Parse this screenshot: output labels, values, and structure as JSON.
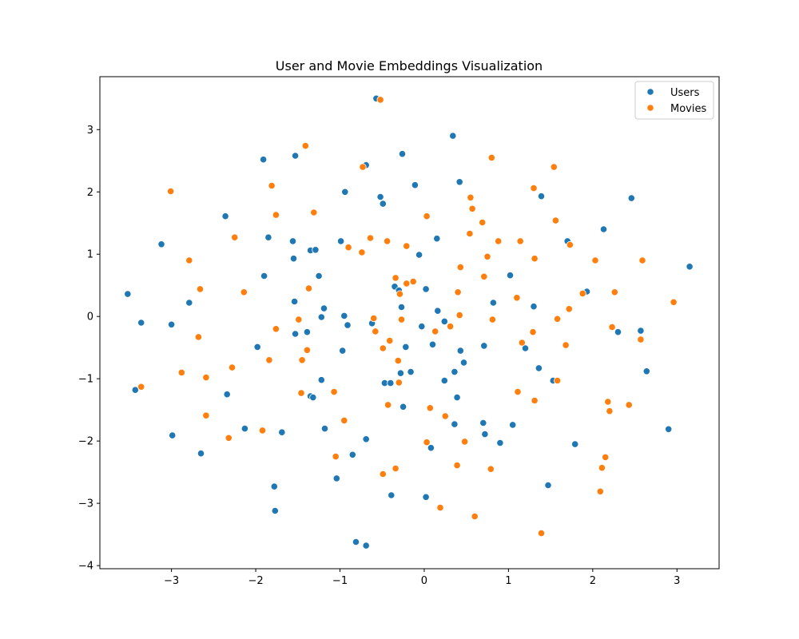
{
  "chart_data": {
    "type": "scatter",
    "title": "User and Movie Embeddings Visualization",
    "xlabel": "",
    "ylabel": "",
    "xlim": [
      -3.85,
      3.5
    ],
    "ylim": [
      -4.05,
      3.85
    ],
    "xticks": [
      -3,
      -2,
      -1,
      0,
      1,
      2,
      3
    ],
    "yticks": [
      -4,
      -3,
      -2,
      -1,
      0,
      1,
      2,
      3
    ],
    "xtick_labels": [
      "−3",
      "−2",
      "−1",
      "0",
      "1",
      "2",
      "3"
    ],
    "ytick_labels": [
      "−4",
      "−3",
      "−2",
      "−1",
      "0",
      "1",
      "2",
      "3"
    ],
    "grid": false,
    "legend_position": "top-right",
    "series": [
      {
        "name": "Users",
        "color": "#1f77b4",
        "points": [
          [
            -3.52,
            0.36
          ],
          [
            -3.43,
            -1.18
          ],
          [
            -3.36,
            -0.1
          ],
          [
            -3.12,
            1.16
          ],
          [
            -3.0,
            -0.13
          ],
          [
            -2.99,
            -1.91
          ],
          [
            -2.79,
            0.22
          ],
          [
            -2.65,
            -2.2
          ],
          [
            -2.36,
            1.61
          ],
          [
            -2.34,
            -1.25
          ],
          [
            -2.13,
            -1.8
          ],
          [
            -1.98,
            -0.49
          ],
          [
            -1.91,
            2.52
          ],
          [
            -1.9,
            0.65
          ],
          [
            -1.85,
            1.27
          ],
          [
            -1.78,
            -2.73
          ],
          [
            -1.77,
            -3.12
          ],
          [
            -1.69,
            -1.86
          ],
          [
            -1.56,
            1.21
          ],
          [
            -1.55,
            0.93
          ],
          [
            -1.54,
            0.24
          ],
          [
            -1.53,
            -0.28
          ],
          [
            -1.53,
            2.58
          ],
          [
            -1.39,
            -0.25
          ],
          [
            -1.35,
            1.06
          ],
          [
            -1.35,
            -1.28
          ],
          [
            -1.32,
            -1.3
          ],
          [
            -1.29,
            1.07
          ],
          [
            -1.25,
            0.65
          ],
          [
            -1.22,
            -1.02
          ],
          [
            -1.22,
            -0.01
          ],
          [
            -1.19,
            0.13
          ],
          [
            -1.18,
            -1.8
          ],
          [
            -1.04,
            -2.6
          ],
          [
            -0.99,
            1.21
          ],
          [
            -0.97,
            -0.55
          ],
          [
            -0.95,
            0.01
          ],
          [
            -0.94,
            2.0
          ],
          [
            -0.91,
            -0.14
          ],
          [
            -0.85,
            -2.22
          ],
          [
            -0.81,
            -3.62
          ],
          [
            -0.69,
            -1.97
          ],
          [
            -0.69,
            2.43
          ],
          [
            -0.69,
            -3.68
          ],
          [
            -0.62,
            -0.11
          ],
          [
            -0.57,
            3.5
          ],
          [
            -0.52,
            1.92
          ],
          [
            -0.49,
            1.81
          ],
          [
            -0.47,
            -1.07
          ],
          [
            -0.4,
            -1.07
          ],
          [
            -0.39,
            -2.87
          ],
          [
            -0.35,
            0.48
          ],
          [
            -0.3,
            0.42
          ],
          [
            -0.28,
            -0.91
          ],
          [
            -0.27,
            0.15
          ],
          [
            -0.26,
            2.61
          ],
          [
            -0.25,
            -1.45
          ],
          [
            -0.22,
            -0.49
          ],
          [
            -0.16,
            -0.89
          ],
          [
            -0.11,
            2.11
          ],
          [
            -0.06,
            0.99
          ],
          [
            -0.03,
            -0.16
          ],
          [
            0.02,
            0.44
          ],
          [
            0.02,
            -2.9
          ],
          [
            0.08,
            -2.11
          ],
          [
            0.1,
            -0.45
          ],
          [
            0.15,
            1.25
          ],
          [
            0.16,
            0.09
          ],
          [
            0.24,
            -0.08
          ],
          [
            0.24,
            -1.03
          ],
          [
            0.34,
            2.9
          ],
          [
            0.36,
            -0.89
          ],
          [
            0.36,
            -1.73
          ],
          [
            0.39,
            -1.3
          ],
          [
            0.42,
            2.16
          ],
          [
            0.43,
            -0.55
          ],
          [
            0.47,
            -0.74
          ],
          [
            0.7,
            -1.71
          ],
          [
            0.71,
            -0.47
          ],
          [
            0.72,
            -1.89
          ],
          [
            0.82,
            0.22
          ],
          [
            0.9,
            -2.03
          ],
          [
            1.02,
            0.66
          ],
          [
            1.05,
            -1.74
          ],
          [
            1.2,
            -0.51
          ],
          [
            1.3,
            0.16
          ],
          [
            1.36,
            -0.83
          ],
          [
            1.39,
            1.93
          ],
          [
            1.47,
            -2.71
          ],
          [
            1.53,
            -1.03
          ],
          [
            1.7,
            1.21
          ],
          [
            1.79,
            -2.05
          ],
          [
            1.93,
            0.4
          ],
          [
            2.13,
            1.4
          ],
          [
            2.3,
            -0.25
          ],
          [
            2.46,
            1.9
          ],
          [
            2.57,
            -0.23
          ],
          [
            2.64,
            -0.88
          ],
          [
            2.9,
            -1.81
          ],
          [
            3.15,
            0.8
          ]
        ]
      },
      {
        "name": "Movies",
        "color": "#ff7f0e",
        "points": [
          [
            -3.36,
            -1.13
          ],
          [
            -3.01,
            2.01
          ],
          [
            -2.88,
            -0.9
          ],
          [
            -2.79,
            0.9
          ],
          [
            -2.68,
            -0.33
          ],
          [
            -2.66,
            0.44
          ],
          [
            -2.59,
            -0.98
          ],
          [
            -2.59,
            -1.59
          ],
          [
            -2.32,
            -1.95
          ],
          [
            -2.28,
            -0.82
          ],
          [
            -2.25,
            1.27
          ],
          [
            -2.14,
            0.39
          ],
          [
            -1.92,
            -1.83
          ],
          [
            -1.84,
            -0.7
          ],
          [
            -1.81,
            2.1
          ],
          [
            -1.76,
            1.63
          ],
          [
            -1.76,
            -0.2
          ],
          [
            -1.49,
            -0.05
          ],
          [
            -1.46,
            -1.23
          ],
          [
            -1.45,
            -0.7
          ],
          [
            -1.41,
            2.74
          ],
          [
            -1.39,
            -0.54
          ],
          [
            -1.37,
            0.45
          ],
          [
            -1.31,
            1.67
          ],
          [
            -1.07,
            -1.21
          ],
          [
            -1.05,
            -2.25
          ],
          [
            -0.95,
            -1.67
          ],
          [
            -0.9,
            1.11
          ],
          [
            -0.74,
            1.03
          ],
          [
            -0.73,
            2.4
          ],
          [
            -0.64,
            1.26
          ],
          [
            -0.6,
            -0.03
          ],
          [
            -0.58,
            -0.24
          ],
          [
            -0.52,
            3.48
          ],
          [
            -0.49,
            -0.51
          ],
          [
            -0.49,
            -2.53
          ],
          [
            -0.44,
            1.21
          ],
          [
            -0.43,
            -1.42
          ],
          [
            -0.41,
            -0.39
          ],
          [
            -0.34,
            -2.44
          ],
          [
            -0.34,
            0.62
          ],
          [
            -0.31,
            -0.71
          ],
          [
            -0.3,
            -1.06
          ],
          [
            -0.29,
            0.36
          ],
          [
            -0.27,
            -0.05
          ],
          [
            -0.21,
            0.53
          ],
          [
            -0.21,
            1.13
          ],
          [
            -0.13,
            0.56
          ],
          [
            0.03,
            1.61
          ],
          [
            0.03,
            -2.02
          ],
          [
            0.07,
            -1.47
          ],
          [
            0.13,
            -0.24
          ],
          [
            0.19,
            -3.07
          ],
          [
            0.25,
            -1.6
          ],
          [
            0.31,
            -0.16
          ],
          [
            0.39,
            -2.39
          ],
          [
            0.4,
            0.39
          ],
          [
            0.42,
            0.02
          ],
          [
            0.43,
            0.79
          ],
          [
            0.48,
            -2.01
          ],
          [
            0.54,
            1.33
          ],
          [
            0.55,
            1.91
          ],
          [
            0.57,
            1.73
          ],
          [
            0.6,
            -3.21
          ],
          [
            0.69,
            1.51
          ],
          [
            0.71,
            0.64
          ],
          [
            0.75,
            0.96
          ],
          [
            0.79,
            -2.45
          ],
          [
            0.8,
            2.55
          ],
          [
            0.81,
            -0.05
          ],
          [
            0.88,
            1.21
          ],
          [
            1.1,
            0.3
          ],
          [
            1.11,
            -1.21
          ],
          [
            1.14,
            1.21
          ],
          [
            1.16,
            -0.42
          ],
          [
            1.29,
            -0.25
          ],
          [
            1.3,
            2.06
          ],
          [
            1.31,
            0.93
          ],
          [
            1.31,
            -1.35
          ],
          [
            1.39,
            -3.48
          ],
          [
            1.54,
            2.4
          ],
          [
            1.56,
            1.54
          ],
          [
            1.58,
            -0.04
          ],
          [
            1.58,
            -1.03
          ],
          [
            1.68,
            -0.46
          ],
          [
            1.72,
            0.12
          ],
          [
            1.73,
            1.15
          ],
          [
            1.88,
            0.37
          ],
          [
            2.03,
            0.9
          ],
          [
            2.09,
            -2.81
          ],
          [
            2.11,
            -2.43
          ],
          [
            2.15,
            -2.26
          ],
          [
            2.18,
            -1.37
          ],
          [
            2.2,
            -1.52
          ],
          [
            2.23,
            -0.17
          ],
          [
            2.26,
            0.39
          ],
          [
            2.43,
            -1.42
          ],
          [
            2.57,
            -0.37
          ],
          [
            2.59,
            0.9
          ],
          [
            2.96,
            0.23
          ]
        ]
      }
    ]
  }
}
